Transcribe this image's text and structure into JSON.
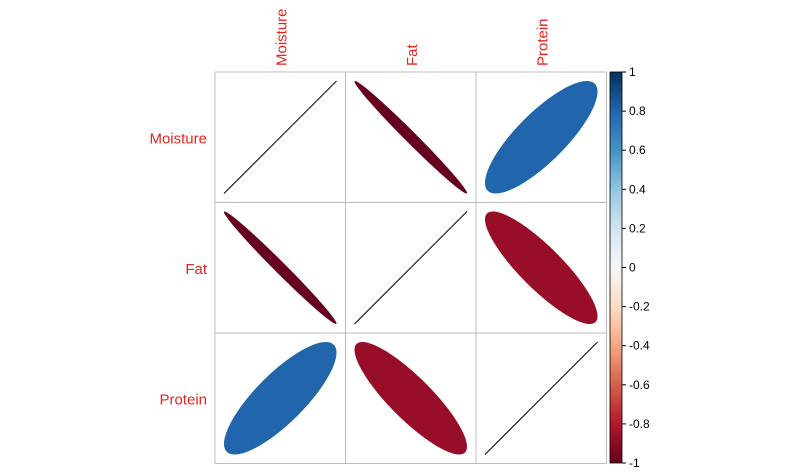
{
  "chart_data": {
    "type": "heatmap",
    "variables": [
      "Moisture",
      "Fat",
      "Protein"
    ],
    "matrix": [
      [
        1.0,
        -0.99,
        0.81
      ],
      [
        -0.99,
        1.0,
        -0.86
      ],
      [
        0.81,
        -0.86,
        1.0
      ]
    ],
    "colorbar": {
      "ticks": [
        "1",
        "0.8",
        "0.6",
        "0.4",
        "0.2",
        "0",
        "-0.2",
        "-0.4",
        "-0.6",
        "-0.8",
        "-1"
      ],
      "range": [
        -1,
        1
      ]
    },
    "colors": {
      "label": "#e8231e",
      "grid": "#bcbcbc",
      "axis": "#000000",
      "positive_fill": "#2166ac",
      "strong_negative_fill": "#67001f",
      "negative_fill": "#980e28"
    }
  }
}
